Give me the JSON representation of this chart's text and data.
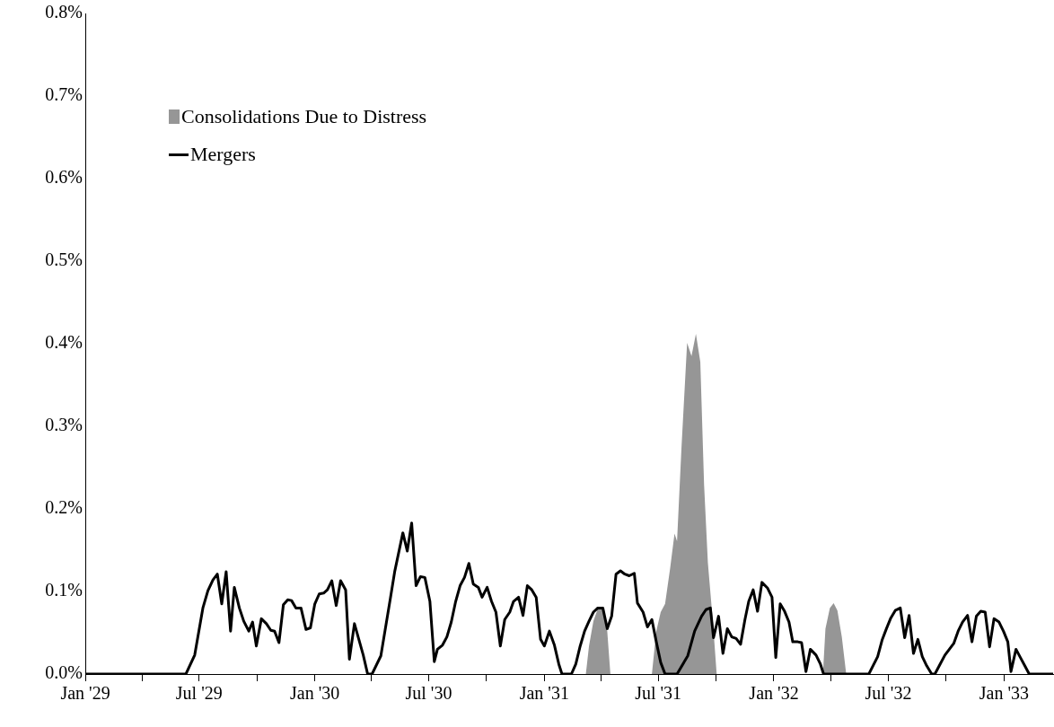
{
  "chart_data": {
    "type": "line",
    "xlim": [
      "1929-01-01",
      "1933-03-20"
    ],
    "xticks": [
      {
        "value": "1929-01-01",
        "label": "Jan '29"
      },
      {
        "value": "1929-04-01",
        "label": null
      },
      {
        "value": "1929-07-01",
        "label": "Jul '29"
      },
      {
        "value": "1929-10-01",
        "label": null
      },
      {
        "value": "1930-01-01",
        "label": "Jan '30"
      },
      {
        "value": "1930-04-01",
        "label": null
      },
      {
        "value": "1930-07-01",
        "label": "Jul '30"
      },
      {
        "value": "1930-10-01",
        "label": null
      },
      {
        "value": "1931-01-01",
        "label": "Jan '31"
      },
      {
        "value": "1931-04-01",
        "label": null
      },
      {
        "value": "1931-07-01",
        "label": "Jul '31"
      },
      {
        "value": "1931-10-01",
        "label": null
      },
      {
        "value": "1932-01-01",
        "label": "Jan '32"
      },
      {
        "value": "1932-04-01",
        "label": null
      },
      {
        "value": "1932-07-01",
        "label": "Jul '32"
      },
      {
        "value": "1932-10-01",
        "label": null
      },
      {
        "value": "1933-01-01",
        "label": "Jan '33"
      }
    ],
    "ylim": [
      0,
      0.8
    ],
    "yticks": [
      {
        "value": 0,
        "label": "0.0%"
      },
      {
        "value": 0.1,
        "label": "0.1%"
      },
      {
        "value": 0.2,
        "label": "0.2%"
      },
      {
        "value": 0.3,
        "label": "0.3%"
      },
      {
        "value": 0.4,
        "label": "0.4%"
      },
      {
        "value": 0.5,
        "label": "0.5%"
      },
      {
        "value": 0.6,
        "label": "0.6%"
      },
      {
        "value": 0.7,
        "label": "0.7%"
      },
      {
        "value": 0.8,
        "label": "0.8%"
      }
    ],
    "grid": false,
    "legend": "top left",
    "marker": "none",
    "series": [
      {
        "name": "Consolidations Due to Distress",
        "type": "area",
        "color": "#969696",
        "x": [
          "1929-01-01",
          "1931-03-08",
          "1931-03-13",
          "1931-03-20",
          "1931-03-27",
          "1931-04-04",
          "1931-04-11",
          "1931-04-16",
          "1931-06-21",
          "1931-06-28",
          "1931-07-05",
          "1931-07-12",
          "1931-07-20",
          "1931-07-27",
          "1931-07-31",
          "1931-08-07",
          "1931-08-16",
          "1931-08-23",
          "1931-08-30",
          "1931-09-06",
          "1931-09-12",
          "1931-09-18",
          "1931-09-26",
          "1931-10-02",
          "1932-03-19",
          "1932-03-23",
          "1932-03-30",
          "1932-04-05",
          "1932-04-11",
          "1932-04-18",
          "1932-04-25",
          "1933-03-20"
        ],
        "values": [
          0,
          0,
          0.034,
          0.064,
          0.079,
          0.08,
          0.052,
          0,
          0,
          0.052,
          0.075,
          0.085,
          0.128,
          0.17,
          0.161,
          0.273,
          0.401,
          0.385,
          0.412,
          0.378,
          0.229,
          0.135,
          0.063,
          0,
          0,
          0.055,
          0.08,
          0.086,
          0.077,
          0.045,
          0,
          0
        ]
      },
      {
        "name": "Mergers",
        "type": "line",
        "color": "#000000",
        "x": [
          "1929-01-01",
          "1929-06-10",
          "1929-06-24",
          "1929-07-07",
          "1929-07-15",
          "1929-07-23",
          "1929-07-30",
          "1929-08-06",
          "1929-08-13",
          "1929-08-20",
          "1929-08-26",
          "1929-09-03",
          "1929-09-10",
          "1929-09-18",
          "1929-09-24",
          "1929-09-30",
          "1929-10-08",
          "1929-10-16",
          "1929-10-23",
          "1929-10-29",
          "1929-11-05",
          "1929-11-12",
          "1929-11-19",
          "1929-11-25",
          "1929-12-02",
          "1929-12-10",
          "1929-12-18",
          "1929-12-25",
          "1930-01-01",
          "1930-01-08",
          "1930-01-15",
          "1930-01-21",
          "1930-01-28",
          "1930-02-04",
          "1930-02-11",
          "1930-02-19",
          "1930-02-25",
          "1930-03-05",
          "1930-03-12",
          "1930-03-19",
          "1930-03-26",
          "1930-04-02",
          "1930-04-16",
          "1930-05-01",
          "1930-05-08",
          "1930-05-21",
          "1930-05-28",
          "1930-06-04",
          "1930-06-11",
          "1930-06-18",
          "1930-06-25",
          "1930-07-03",
          "1930-07-10",
          "1930-07-15",
          "1930-07-23",
          "1930-07-30",
          "1930-08-06",
          "1930-08-13",
          "1930-08-20",
          "1930-08-27",
          "1930-09-03",
          "1930-09-10",
          "1930-09-18",
          "1930-09-24",
          "1930-10-02",
          "1930-10-09",
          "1930-10-16",
          "1930-10-23",
          "1930-10-30",
          "1930-11-07",
          "1930-11-13",
          "1930-11-21",
          "1930-11-28",
          "1930-12-05",
          "1930-12-12",
          "1930-12-19",
          "1930-12-26",
          "1931-01-01",
          "1931-01-09",
          "1931-01-17",
          "1931-01-24",
          "1931-01-29",
          "1931-02-13",
          "1931-02-20",
          "1931-02-27",
          "1931-03-06",
          "1931-03-13",
          "1931-03-20",
          "1931-03-27",
          "1931-04-04",
          "1931-04-11",
          "1931-04-18",
          "1931-04-25",
          "1931-05-02",
          "1931-05-09",
          "1931-05-16",
          "1931-05-24",
          "1931-05-29",
          "1931-06-07",
          "1931-06-14",
          "1931-06-21",
          "1931-06-28",
          "1931-07-05",
          "1931-07-12",
          "1931-07-31",
          "1931-08-17",
          "1931-08-28",
          "1931-09-08",
          "1931-09-15",
          "1931-09-22",
          "1931-09-27",
          "1931-10-05",
          "1931-10-12",
          "1931-10-19",
          "1931-10-26",
          "1931-11-02",
          "1931-11-09",
          "1931-11-16",
          "1931-11-22",
          "1931-11-29",
          "1931-12-06",
          "1931-12-13",
          "1931-12-22",
          "1931-12-29",
          "1932-01-04",
          "1932-01-11",
          "1932-01-18",
          "1932-01-25",
          "1932-01-31",
          "1932-02-08",
          "1932-02-14",
          "1932-02-21",
          "1932-02-28",
          "1932-03-08",
          "1932-03-15",
          "1932-03-20",
          "1932-05-31",
          "1932-06-14",
          "1932-06-21",
          "1932-06-28",
          "1932-07-05",
          "1932-07-12",
          "1932-07-20",
          "1932-07-27",
          "1932-08-03",
          "1932-08-10",
          "1932-08-17",
          "1932-08-24",
          "1932-08-31",
          "1932-09-08",
          "1932-09-13",
          "1932-09-20",
          "1932-09-29",
          "1932-10-06",
          "1932-10-13",
          "1932-10-20",
          "1932-10-27",
          "1932-11-04",
          "1932-11-11",
          "1932-11-18",
          "1932-11-25",
          "1932-12-02",
          "1932-12-09",
          "1932-12-16",
          "1932-12-24",
          "1932-12-31",
          "1933-01-07",
          "1933-01-12",
          "1933-01-20",
          "1933-01-27",
          "1933-02-03",
          "1933-02-10",
          "1933-03-20"
        ],
        "values": [
          0,
          0,
          0.023,
          0.08,
          0.101,
          0.114,
          0.121,
          0.085,
          0.124,
          0.052,
          0.105,
          0.08,
          0.064,
          0.052,
          0.063,
          0.034,
          0.067,
          0.061,
          0.053,
          0.052,
          0.038,
          0.084,
          0.09,
          0.089,
          0.08,
          0.08,
          0.054,
          0.056,
          0.085,
          0.097,
          0.098,
          0.102,
          0.113,
          0.083,
          0.113,
          0.102,
          0.018,
          0.061,
          0.042,
          0.023,
          0,
          0,
          0.022,
          0.091,
          0.124,
          0.171,
          0.149,
          0.183,
          0.107,
          0.118,
          0.117,
          0.088,
          0.015,
          0.03,
          0.035,
          0.045,
          0.063,
          0.088,
          0.107,
          0.117,
          0.134,
          0.109,
          0.105,
          0.093,
          0.105,
          0.088,
          0.075,
          0.034,
          0.066,
          0.075,
          0.088,
          0.093,
          0.071,
          0.107,
          0.102,
          0.093,
          0.042,
          0.034,
          0.052,
          0.035,
          0.012,
          0,
          0,
          0.012,
          0.034,
          0.052,
          0.064,
          0.075,
          0.08,
          0.08,
          0.055,
          0.07,
          0.121,
          0.125,
          0.121,
          0.119,
          0.122,
          0.086,
          0.075,
          0.057,
          0.066,
          0.039,
          0.014,
          0,
          0,
          0.022,
          0.052,
          0.07,
          0.078,
          0.08,
          0.044,
          0.07,
          0.025,
          0.055,
          0.045,
          0.043,
          0.036,
          0.066,
          0.088,
          0.102,
          0.076,
          0.111,
          0.104,
          0.093,
          0.02,
          0.085,
          0.076,
          0.063,
          0.039,
          0.039,
          0.038,
          0.003,
          0.03,
          0.023,
          0.012,
          0,
          0,
          0.021,
          0.041,
          0.055,
          0.068,
          0.077,
          0.08,
          0.044,
          0.071,
          0.025,
          0.042,
          0.021,
          0.01,
          0,
          0,
          0.01,
          0.023,
          0.03,
          0.037,
          0.052,
          0.063,
          0.071,
          0.039,
          0.07,
          0.076,
          0.075,
          0.033,
          0.067,
          0.063,
          0.052,
          0.039,
          0.003,
          0.03,
          0.02,
          0.01,
          0,
          0
        ]
      }
    ]
  }
}
